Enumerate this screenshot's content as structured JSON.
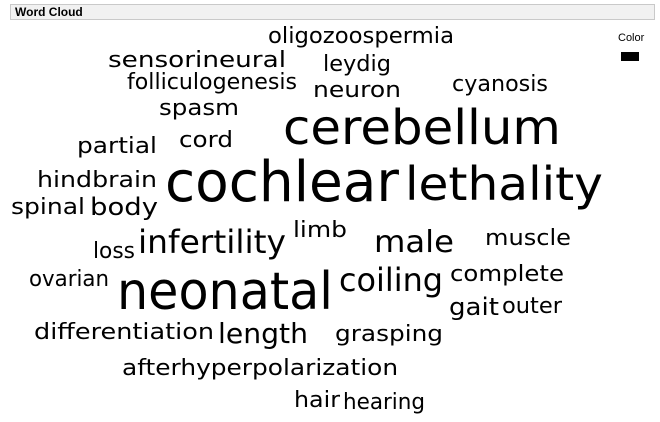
{
  "window": {
    "title": "Word Cloud"
  },
  "legend": {
    "label": "Color",
    "swatch_color": "#000000"
  },
  "words": [
    {
      "text": "oligozoospermia",
      "weight": 2
    },
    {
      "text": "sensorineural",
      "weight": 2
    },
    {
      "text": "leydig",
      "weight": 2
    },
    {
      "text": "folliculogenesis",
      "weight": 2
    },
    {
      "text": "neuron",
      "weight": 2
    },
    {
      "text": "cyanosis",
      "weight": 2
    },
    {
      "text": "spasm",
      "weight": 2
    },
    {
      "text": "cerebellum",
      "weight": 5
    },
    {
      "text": "partial",
      "weight": 2
    },
    {
      "text": "cord",
      "weight": 2
    },
    {
      "text": "hindbrain",
      "weight": 2
    },
    {
      "text": "cochlear",
      "weight": 6
    },
    {
      "text": "lethality",
      "weight": 5
    },
    {
      "text": "spinal",
      "weight": 2
    },
    {
      "text": "body",
      "weight": 2
    },
    {
      "text": "limb",
      "weight": 2
    },
    {
      "text": "male",
      "weight": 3
    },
    {
      "text": "muscle",
      "weight": 2
    },
    {
      "text": "loss",
      "weight": 2
    },
    {
      "text": "infertility",
      "weight": 3
    },
    {
      "text": "ovarian",
      "weight": 2
    },
    {
      "text": "neonatal",
      "weight": 6
    },
    {
      "text": "coiling",
      "weight": 3
    },
    {
      "text": "complete",
      "weight": 2
    },
    {
      "text": "gait",
      "weight": 2
    },
    {
      "text": "outer",
      "weight": 2
    },
    {
      "text": "differentiation",
      "weight": 2
    },
    {
      "text": "length",
      "weight": 3
    },
    {
      "text": "grasping",
      "weight": 2
    },
    {
      "text": "afterhyperpolarization",
      "weight": 2
    },
    {
      "text": "hair",
      "weight": 2
    },
    {
      "text": "hearing",
      "weight": 2
    }
  ]
}
